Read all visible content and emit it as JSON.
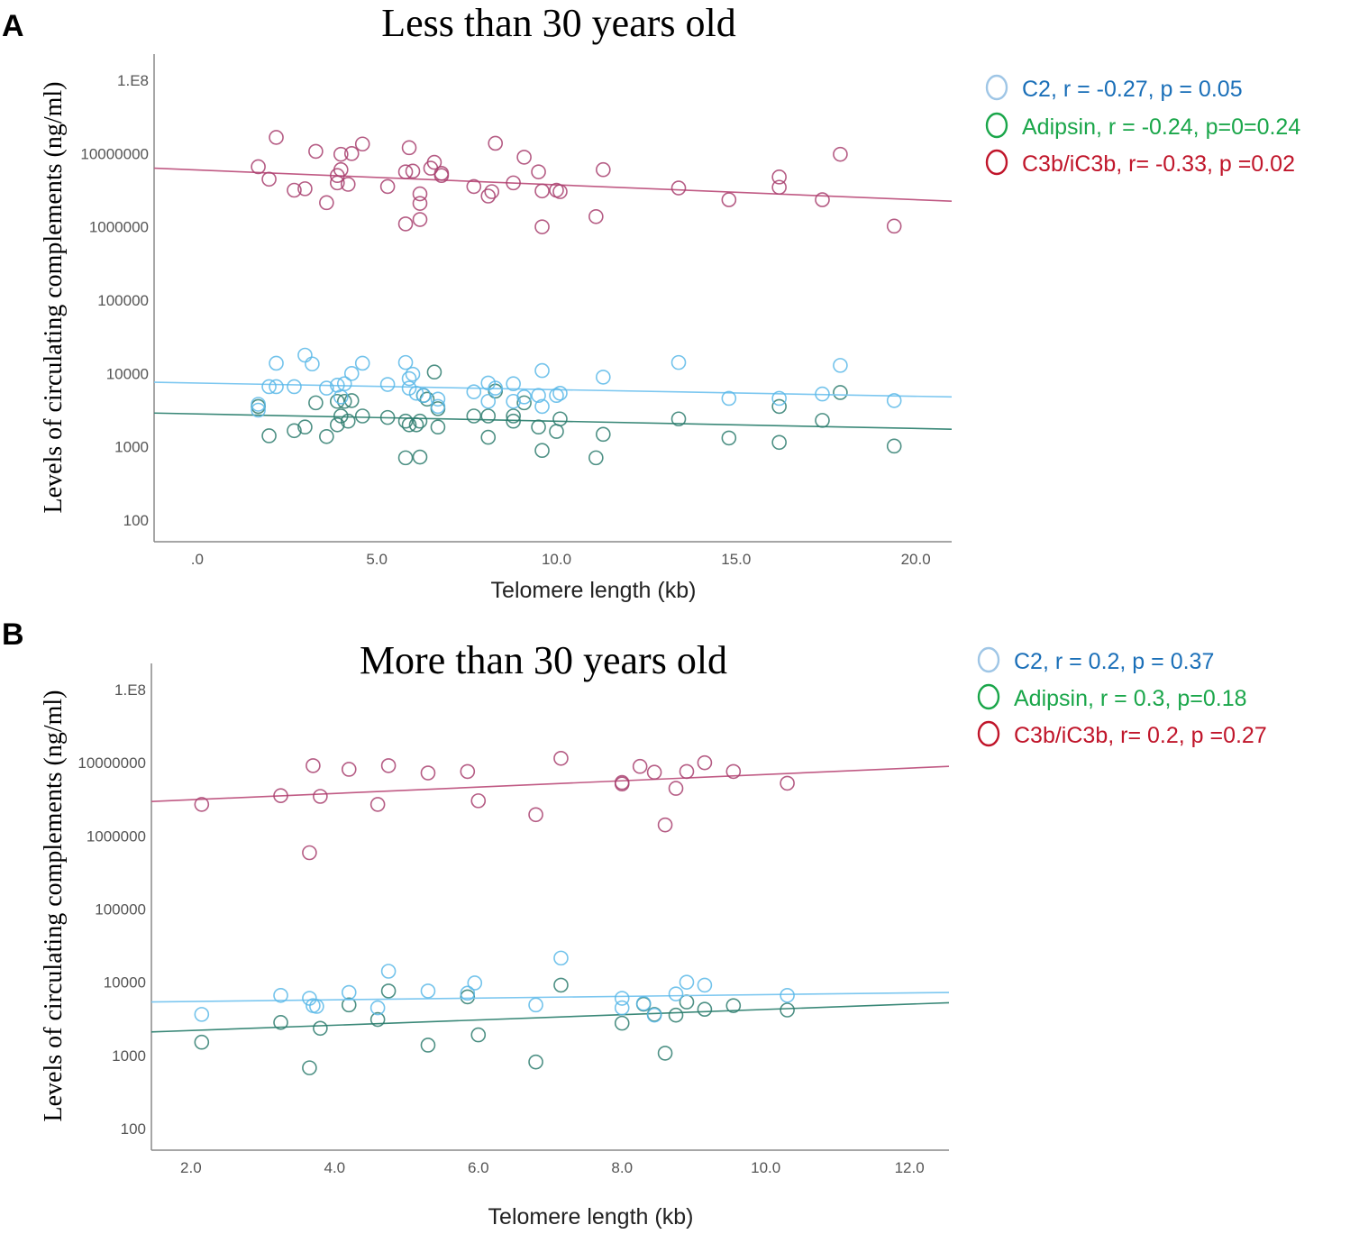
{
  "colors": {
    "c2_point": "#5bb8e8",
    "c2_line": "#7cc7f0",
    "adipsin_point": "#2e7d6e",
    "adipsin_line": "#3a8878",
    "c3b_point": "#a8406e",
    "c3b_line": "#c05a84",
    "legend_c2_text": "#1a6fb8",
    "legend_c2_marker": "#9fc6e6",
    "legend_adipsin": "#1aa64a",
    "legend_c3b": "#c0152a"
  },
  "chart_data": [
    {
      "panel": "A",
      "type": "scatter",
      "title": "Less than 30 years old",
      "xlabel": "Telomere length (kb)",
      "ylabel": "Levels of circulating complements (ng/ml)",
      "xlim": [
        -1.2,
        21.0
      ],
      "ylim_log10": [
        1.7,
        8.6
      ],
      "yscale": "log",
      "x_ticks": [
        0,
        5,
        10,
        15,
        20
      ],
      "x_tick_labels": [
        ".0",
        "5.0",
        "10.0",
        "15.0",
        "20.0"
      ],
      "y_ticks_log10": [
        2,
        3,
        4,
        5,
        6,
        7,
        8
      ],
      "y_tick_labels": [
        "100",
        "1000",
        "10000",
        "100000",
        "1000000",
        "10000000",
        "1.E8"
      ],
      "legend": {
        "C2": "C2, r = -0.27, p =  0.05",
        "Adipsin": "Adipsin, r = -0.24, p=0=0.24",
        "C3b": "C3b/iC3b, r= -0.33, p =0.02"
      },
      "series": [
        {
          "name": "C2",
          "fit_log10": [
            [
              -1.2,
              3.88
            ],
            [
              21.0,
              3.68
            ]
          ],
          "points": [
            [
              1.7,
              3.58
            ],
            [
              1.7,
              3.5
            ],
            [
              2.0,
              3.82
            ],
            [
              2.2,
              4.14
            ],
            [
              2.2,
              3.82
            ],
            [
              2.7,
              3.82
            ],
            [
              3.0,
              4.25
            ],
            [
              3.2,
              4.13
            ],
            [
              3.6,
              3.8
            ],
            [
              3.9,
              3.84
            ],
            [
              4.0,
              3.68
            ],
            [
              4.1,
              3.86
            ],
            [
              4.3,
              4.0
            ],
            [
              4.6,
              4.14
            ],
            [
              5.3,
              3.85
            ],
            [
              5.8,
              4.15
            ],
            [
              5.9,
              3.93
            ],
            [
              5.9,
              3.8
            ],
            [
              6.0,
              3.99
            ],
            [
              6.1,
              3.73
            ],
            [
              6.3,
              3.7
            ],
            [
              6.7,
              3.65
            ],
            [
              6.7,
              3.55
            ],
            [
              7.7,
              3.75
            ],
            [
              8.1,
              3.87
            ],
            [
              8.1,
              3.62
            ],
            [
              8.3,
              3.8
            ],
            [
              8.8,
              3.86
            ],
            [
              8.8,
              3.62
            ],
            [
              9.1,
              3.68
            ],
            [
              9.5,
              3.7
            ],
            [
              9.6,
              4.04
            ],
            [
              9.6,
              3.55
            ],
            [
              10.0,
              3.7
            ],
            [
              10.1,
              3.73
            ],
            [
              11.3,
              3.95
            ],
            [
              13.4,
              4.15
            ],
            [
              14.8,
              3.66
            ],
            [
              16.2,
              3.66
            ],
            [
              17.4,
              3.72
            ],
            [
              17.9,
              4.11
            ],
            [
              19.4,
              3.63
            ]
          ]
        },
        {
          "name": "Adipsin",
          "fit_log10": [
            [
              -1.2,
              3.46
            ],
            [
              21.0,
              3.24
            ]
          ],
          "points": [
            [
              1.7,
              3.55
            ],
            [
              2.0,
              3.15
            ],
            [
              2.7,
              3.22
            ],
            [
              3.0,
              3.27
            ],
            [
              3.3,
              3.6
            ],
            [
              3.6,
              3.14
            ],
            [
              3.9,
              3.3
            ],
            [
              3.9,
              3.62
            ],
            [
              4.0,
              3.42
            ],
            [
              4.1,
              3.62
            ],
            [
              4.2,
              3.35
            ],
            [
              4.3,
              3.63
            ],
            [
              4.6,
              3.42
            ],
            [
              5.3,
              3.4
            ],
            [
              5.8,
              3.35
            ],
            [
              5.8,
              2.85
            ],
            [
              5.9,
              3.3
            ],
            [
              6.1,
              3.3
            ],
            [
              6.2,
              3.35
            ],
            [
              6.2,
              2.86
            ],
            [
              6.3,
              3.7
            ],
            [
              6.4,
              3.65
            ],
            [
              6.6,
              4.02
            ],
            [
              6.7,
              3.52
            ],
            [
              6.7,
              3.27
            ],
            [
              7.7,
              3.42
            ],
            [
              8.1,
              3.42
            ],
            [
              8.1,
              3.13
            ],
            [
              8.3,
              3.76
            ],
            [
              8.8,
              3.42
            ],
            [
              8.8,
              3.35
            ],
            [
              9.1,
              3.6
            ],
            [
              9.5,
              3.27
            ],
            [
              9.6,
              2.95
            ],
            [
              10.0,
              3.21
            ],
            [
              10.1,
              3.38
            ],
            [
              11.1,
              2.85
            ],
            [
              11.3,
              3.17
            ],
            [
              13.4,
              3.38
            ],
            [
              14.8,
              3.12
            ],
            [
              16.2,
              3.06
            ],
            [
              16.2,
              3.55
            ],
            [
              17.4,
              3.36
            ],
            [
              17.9,
              3.74
            ],
            [
              19.4,
              3.01
            ]
          ]
        },
        {
          "name": "C3b",
          "fit_log10": [
            [
              -1.2,
              6.8
            ],
            [
              21.0,
              6.35
            ]
          ],
          "points": [
            [
              1.7,
              6.82
            ],
            [
              2.0,
              6.65
            ],
            [
              2.2,
              7.22
            ],
            [
              2.7,
              6.5
            ],
            [
              3.0,
              6.52
            ],
            [
              3.3,
              7.03
            ],
            [
              3.6,
              6.33
            ],
            [
              3.9,
              6.7
            ],
            [
              3.9,
              6.6
            ],
            [
              4.0,
              6.99
            ],
            [
              4.0,
              6.78
            ],
            [
              4.2,
              6.58
            ],
            [
              4.3,
              7.0
            ],
            [
              4.6,
              7.13
            ],
            [
              5.3,
              6.55
            ],
            [
              5.8,
              6.04
            ],
            [
              5.8,
              6.75
            ],
            [
              5.9,
              7.08
            ],
            [
              6.0,
              6.76
            ],
            [
              6.2,
              6.32
            ],
            [
              6.2,
              6.45
            ],
            [
              6.2,
              6.1
            ],
            [
              6.5,
              6.8
            ],
            [
              6.6,
              6.88
            ],
            [
              6.8,
              6.73
            ],
            [
              6.8,
              6.7
            ],
            [
              7.7,
              6.55
            ],
            [
              8.1,
              6.42
            ],
            [
              8.2,
              6.48
            ],
            [
              8.3,
              7.14
            ],
            [
              8.8,
              6.6
            ],
            [
              9.1,
              6.95
            ],
            [
              9.5,
              6.75
            ],
            [
              9.6,
              6.49
            ],
            [
              9.6,
              6.0
            ],
            [
              10.0,
              6.5
            ],
            [
              10.1,
              6.48
            ],
            [
              11.1,
              6.14
            ],
            [
              11.3,
              6.78
            ],
            [
              13.4,
              6.53
            ],
            [
              14.8,
              6.37
            ],
            [
              16.2,
              6.68
            ],
            [
              16.2,
              6.54
            ],
            [
              17.4,
              6.37
            ],
            [
              17.9,
              6.99
            ],
            [
              19.4,
              6.01
            ]
          ]
        }
      ]
    },
    {
      "panel": "B",
      "type": "scatter",
      "title": "More than 30 years old",
      "xlabel": "Telomere length (kb)",
      "ylabel": "Levels of circulating complements (ng/ml)",
      "xlim": [
        1.45,
        12.55
      ],
      "ylim_log10": [
        1.7,
        8.6
      ],
      "yscale": "log",
      "x_ticks": [
        2,
        4,
        6,
        8,
        10,
        12
      ],
      "x_tick_labels": [
        "2.0",
        "4.0",
        "6.0",
        "8.0",
        "10.0",
        "12.0"
      ],
      "y_ticks_log10": [
        2,
        3,
        4,
        5,
        6,
        7,
        8
      ],
      "y_tick_labels": [
        "100",
        "1000",
        "10000",
        "100000",
        "1000000",
        "10000000",
        "1.E8"
      ],
      "legend": {
        "C2": "C2, r = 0.2, p =  0.37",
        "Adipsin": "Adipsin, r = 0.3, p=0.18",
        "C3b": "C3b/iC3b, r= 0.2, p =0.27"
      },
      "series": [
        {
          "name": "C2",
          "fit_log10": [
            [
              1.45,
              3.73
            ],
            [
              12.55,
              3.86
            ]
          ],
          "points": [
            [
              2.15,
              3.56
            ],
            [
              3.25,
              3.82
            ],
            [
              3.65,
              3.78
            ],
            [
              3.7,
              3.68
            ],
            [
              3.75,
              3.67
            ],
            [
              4.2,
              3.86
            ],
            [
              4.6,
              3.65
            ],
            [
              4.75,
              4.15
            ],
            [
              5.3,
              3.88
            ],
            [
              5.85,
              3.85
            ],
            [
              5.95,
              3.99
            ],
            [
              6.8,
              3.69
            ],
            [
              7.15,
              4.33
            ],
            [
              8.0,
              3.78
            ],
            [
              8.0,
              3.65
            ],
            [
              8.3,
              3.71
            ],
            [
              8.45,
              3.55
            ],
            [
              8.75,
              3.84
            ],
            [
              8.9,
              4.0
            ],
            [
              9.15,
              3.96
            ],
            [
              10.3,
              3.82
            ]
          ]
        },
        {
          "name": "Adipsin",
          "fit_log10": [
            [
              1.45,
              3.32
            ],
            [
              12.55,
              3.72
            ]
          ],
          "points": [
            [
              2.15,
              3.18
            ],
            [
              3.25,
              3.45
            ],
            [
              3.65,
              2.83
            ],
            [
              3.8,
              3.37
            ],
            [
              4.2,
              3.69
            ],
            [
              4.6,
              3.49
            ],
            [
              4.75,
              3.88
            ],
            [
              5.3,
              3.14
            ],
            [
              5.85,
              3.8
            ],
            [
              6.0,
              3.28
            ],
            [
              6.8,
              2.91
            ],
            [
              7.15,
              3.96
            ],
            [
              8.0,
              3.44
            ],
            [
              8.3,
              3.7
            ],
            [
              8.45,
              3.56
            ],
            [
              8.6,
              3.03
            ],
            [
              8.75,
              3.55
            ],
            [
              8.9,
              3.73
            ],
            [
              9.15,
              3.63
            ],
            [
              9.55,
              3.68
            ],
            [
              10.3,
              3.62
            ]
          ]
        },
        {
          "name": "C3b",
          "fit_log10": [
            [
              1.45,
              6.47
            ],
            [
              12.55,
              6.95
            ]
          ],
          "points": [
            [
              2.15,
              6.43
            ],
            [
              3.25,
              6.55
            ],
            [
              3.65,
              5.77
            ],
            [
              3.7,
              6.96
            ],
            [
              3.8,
              6.54
            ],
            [
              4.2,
              6.91
            ],
            [
              4.6,
              6.43
            ],
            [
              4.75,
              6.96
            ],
            [
              5.3,
              6.86
            ],
            [
              5.85,
              6.88
            ],
            [
              6.0,
              6.48
            ],
            [
              6.8,
              6.29
            ],
            [
              7.15,
              7.06
            ],
            [
              8.0,
              6.73
            ],
            [
              8.0,
              6.71
            ],
            [
              8.25,
              6.95
            ],
            [
              8.45,
              6.87
            ],
            [
              8.6,
              6.15
            ],
            [
              8.75,
              6.65
            ],
            [
              8.9,
              6.88
            ],
            [
              9.15,
              7.0
            ],
            [
              9.55,
              6.88
            ],
            [
              10.3,
              6.72
            ]
          ]
        }
      ]
    }
  ]
}
